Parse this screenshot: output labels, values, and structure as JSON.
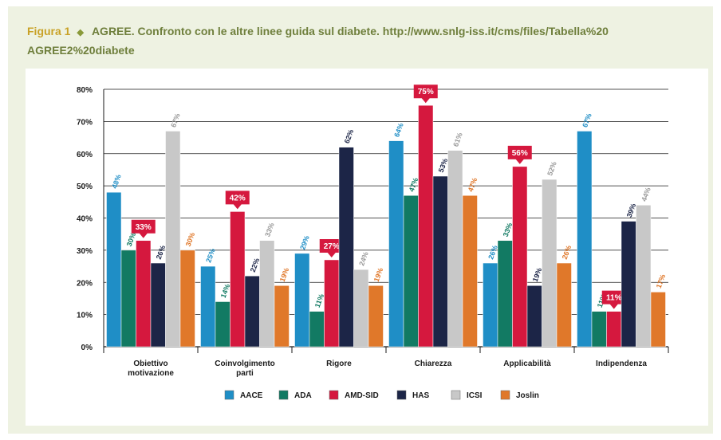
{
  "caption": {
    "figure_label": "Figura 1",
    "diamond": "◆",
    "text": "AGREE. Confronto con le altre linee guida sul diabete. http://www.snlg-iss.it/cms/files/Tabella%20 AGREE2%20diabete"
  },
  "chart_data": {
    "type": "bar",
    "title": "AGREE. Confronto con le altre linee guida sul diabete.",
    "xlabel": "",
    "ylabel": "",
    "ylim": [
      0,
      80
    ],
    "yticks": [
      "0%",
      "10%",
      "20%",
      "30%",
      "40%",
      "50%",
      "60%",
      "70%",
      "80%"
    ],
    "categories": [
      [
        "Obiettivo",
        "motivazione"
      ],
      [
        "Coinvolgimento",
        "parti"
      ],
      [
        "Rigore"
      ],
      [
        "Chiarezza"
      ],
      [
        "Applicabilità"
      ],
      [
        "Indipendenza"
      ]
    ],
    "series": [
      {
        "name": "AACE",
        "color": "#1f8ec6",
        "values": [
          48,
          25,
          29,
          64,
          26,
          67
        ]
      },
      {
        "name": "ADA",
        "color": "#127a63",
        "values": [
          30,
          14,
          11,
          47,
          33,
          11
        ]
      },
      {
        "name": "AMD-SID",
        "color": "#d5183e",
        "values": [
          33,
          42,
          27,
          75,
          56,
          11
        ],
        "highlight": true
      },
      {
        "name": "HAS",
        "color": "#1c2547",
        "values": [
          26,
          22,
          62,
          53,
          19,
          39
        ]
      },
      {
        "name": "ICSI",
        "color": "#c8c8c8",
        "values": [
          67,
          33,
          24,
          61,
          52,
          44
        ]
      },
      {
        "name": "Joslin",
        "color": "#e0782a",
        "values": [
          30,
          19,
          19,
          47,
          26,
          17
        ]
      }
    ],
    "label_colors": [
      "#1f8ec6",
      "#127a63",
      "#ffffff",
      "#1c2547",
      "#9a9a9a",
      "#e0782a"
    ],
    "legend_position": "bottom",
    "grid": true
  }
}
